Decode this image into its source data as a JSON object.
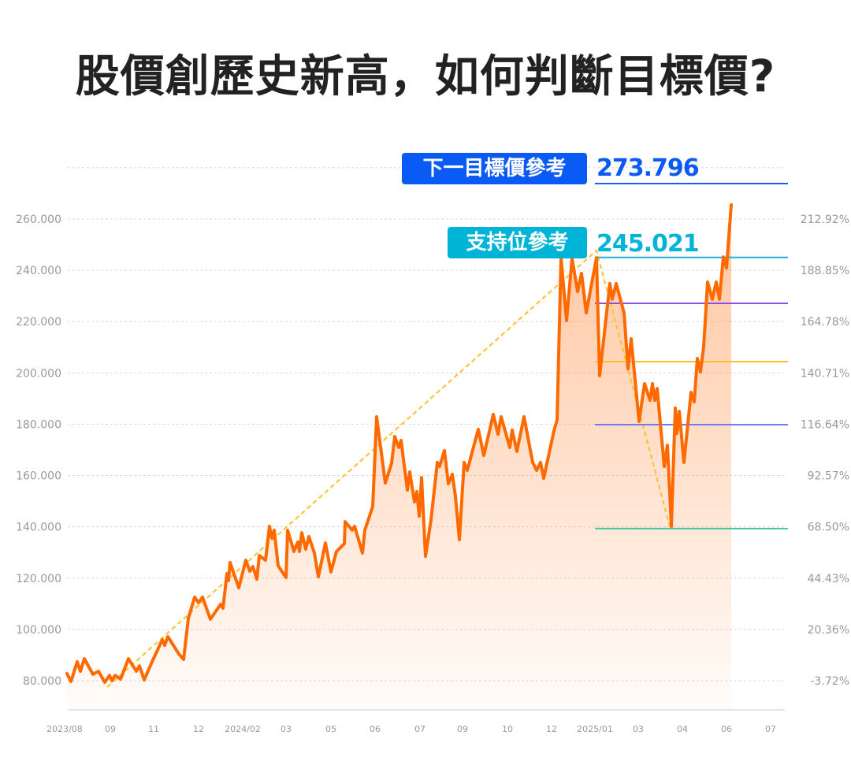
{
  "title": "股價創歷史新高，如何判斷目標價?",
  "chart_data": {
    "type": "area",
    "title": "股價創歷史新高，如何判斷目標價?",
    "x_tick_labels": [
      "2023/08",
      "09",
      "11",
      "12",
      "2024/02",
      "03",
      "05",
      "06",
      "07",
      "09",
      "10",
      "12",
      "2025/01",
      "03",
      "04",
      "06",
      "07"
    ],
    "y_left_ticks": [
      "80.000",
      "100.000",
      "120.000",
      "140.000",
      "160.000",
      "180.000",
      "200.000",
      "220.000",
      "240.000",
      "260.000"
    ],
    "y_right_ticks": [
      "-3.72%",
      "20.36%",
      "44.43%",
      "68.50%",
      "92.57%",
      "116.64%",
      "140.71%",
      "164.78%",
      "188.85%",
      "212.92%"
    ],
    "ylim": [
      80,
      280
    ],
    "grid": true,
    "series": [
      {
        "color": "#ff6a00",
        "values": [
          82.8,
          79.7,
          87.4,
          83.7,
          88.6,
          82.5,
          83.7,
          79.4,
          82.1,
          80,
          82.1,
          80.6,
          88.6,
          83.7,
          85.8,
          80.3,
          87.4,
          96.0,
          93.8,
          97.2,
          90.4,
          88.3,
          104.3,
          112.6,
          110.4,
          112.6,
          104.0,
          109.8,
          108.3,
          121.8,
          119.0,
          126.1,
          116.2,
          127.0,
          122.7,
          124.5,
          119.6,
          128.8,
          127.0,
          140.2,
          135.6,
          138.7,
          124.8,
          120.2,
          138.7,
          130.4,
          134.1,
          130.4,
          137.7,
          131.3,
          136.2,
          129.8,
          120.5,
          133.7,
          122.4,
          130.4,
          133.4,
          142.0,
          138.7,
          140.2,
          129.8,
          138.7,
          147.9,
          182.9,
          157.1,
          164.8,
          175.2,
          170.9,
          173.7,
          154.3,
          161.4,
          149.7,
          153.7,
          144.2,
          159.2,
          128.5,
          142.7,
          165.1,
          163.5,
          169.7,
          156.8,
          160.5,
          151.9,
          135.0,
          165.1,
          162.0,
          178.0,
          167.8,
          183.8,
          176.1,
          182.9,
          170.9,
          177.7,
          169.4,
          182.9,
          165.1,
          162.0,
          165.1,
          158.9,
          177.4,
          181.7,
          244.9,
          220.4,
          244.6,
          231.7,
          238.8,
          223.4,
          244.9,
          198.9,
          234.8,
          228.7,
          234.8,
          223.4,
          201.6,
          213.3,
          181.0,
          195.8,
          189.3,
          195.8,
          189.3,
          193.9,
          163.5,
          171.8,
          140.2,
          186.3,
          176.4,
          185.0,
          165.1,
          192.4,
          188.7,
          205.6,
          200.4,
          210.2,
          235.4,
          228.7,
          235.4,
          228.7,
          245.2,
          240.9,
          265.5
        ]
      }
    ],
    "reference_lines": [
      {
        "value": 273.796,
        "color": "#1a5cff"
      },
      {
        "value": 245.021,
        "color": "#1bb3d9"
      },
      {
        "value": 227.1,
        "color": "#8b4fe8"
      },
      {
        "value": 204.4,
        "color": "#ffc02a"
      },
      {
        "value": 179.8,
        "color": "#6c7cff"
      },
      {
        "value": 139.3,
        "color": "#3cc79a"
      }
    ],
    "trend_color": "#ffc02a"
  },
  "annotations": {
    "target_label": "下一目標價參考",
    "target_value": "273.796",
    "target_color": "#0a5af5",
    "support_label": "支持位參考",
    "support_value": "245.021",
    "support_color": "#00b4d8"
  }
}
